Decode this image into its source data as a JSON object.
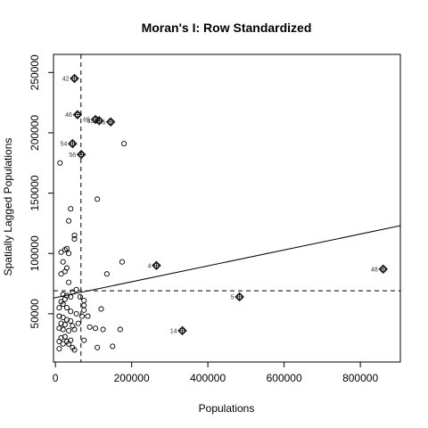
{
  "chart_data": {
    "type": "scatter",
    "title": "Moran's I: Row Standardized",
    "xlabel": "Populations",
    "ylabel": "Spatially Lagged Populations",
    "xlim": [
      -5000,
      905000
    ],
    "ylim": [
      10000,
      265000
    ],
    "x_ticks": [
      0,
      200000,
      400000,
      600000,
      800000
    ],
    "x_tick_labels": [
      "0",
      "200000",
      "400000",
      "600000",
      "800000"
    ],
    "y_ticks": [
      50000,
      100000,
      150000,
      200000,
      250000
    ],
    "y_tick_labels": [
      "50000",
      "100000",
      "150000",
      "200000",
      "250000"
    ],
    "grid": false,
    "reference_lines": {
      "vline_x": 67000,
      "hline_y": 69000,
      "style": "dashed"
    },
    "regression_line": {
      "y_at_x_min": 63000,
      "y_at_x_max": 123000
    },
    "points": [
      [
        12000,
        175000
      ],
      [
        40000,
        137000
      ],
      [
        110000,
        145000
      ],
      [
        35000,
        127000
      ],
      [
        180000,
        191000
      ],
      [
        50000,
        115000
      ],
      [
        50000,
        112000
      ],
      [
        15000,
        101000
      ],
      [
        25000,
        103000
      ],
      [
        30000,
        104000
      ],
      [
        35000,
        100000
      ],
      [
        20000,
        93000
      ],
      [
        30000,
        88000
      ],
      [
        175000,
        93000
      ],
      [
        135000,
        83000
      ],
      [
        15000,
        83000
      ],
      [
        25000,
        85000
      ],
      [
        35000,
        76000
      ],
      [
        20000,
        66000
      ],
      [
        30000,
        65000
      ],
      [
        45000,
        68000
      ],
      [
        55000,
        70000
      ],
      [
        15000,
        60000
      ],
      [
        25000,
        62000
      ],
      [
        40000,
        64000
      ],
      [
        65000,
        64000
      ],
      [
        75000,
        61000
      ],
      [
        75000,
        57000
      ],
      [
        75000,
        53000
      ],
      [
        10000,
        55000
      ],
      [
        20000,
        58000
      ],
      [
        30000,
        55000
      ],
      [
        40000,
        52000
      ],
      [
        55000,
        50000
      ],
      [
        120000,
        54000
      ],
      [
        70000,
        48000
      ],
      [
        85000,
        48000
      ],
      [
        10000,
        48000
      ],
      [
        20000,
        47000
      ],
      [
        30000,
        45000
      ],
      [
        40000,
        44000
      ],
      [
        15000,
        42000
      ],
      [
        25000,
        41000
      ],
      [
        45000,
        40000
      ],
      [
        60000,
        42000
      ],
      [
        10000,
        38000
      ],
      [
        20000,
        37000
      ],
      [
        35000,
        36000
      ],
      [
        50000,
        37000
      ],
      [
        90000,
        39000
      ],
      [
        105000,
        38000
      ],
      [
        125000,
        37000
      ],
      [
        170000,
        37000
      ],
      [
        75000,
        28000
      ],
      [
        25000,
        31000
      ],
      [
        15000,
        30000
      ],
      [
        30000,
        27000
      ],
      [
        40000,
        28000
      ],
      [
        10000,
        27000
      ],
      [
        20000,
        25000
      ],
      [
        35000,
        25000
      ],
      [
        45000,
        22000
      ],
      [
        50000,
        20000
      ],
      [
        110000,
        22000
      ],
      [
        150000,
        23000
      ],
      [
        10000,
        21000
      ]
    ],
    "influential_points": [
      {
        "id": "42",
        "x": 50000,
        "y": 245000
      },
      {
        "id": "46",
        "x": 58000,
        "y": 215000
      },
      {
        "id": "65",
        "x": 105000,
        "y": 211000
      },
      {
        "id": "53",
        "x": 115000,
        "y": 210000
      },
      {
        "id": "6",
        "x": 145000,
        "y": 209000
      },
      {
        "id": "54",
        "x": 45000,
        "y": 191000
      },
      {
        "id": "56",
        "x": 68000,
        "y": 182000
      },
      {
        "id": "4",
        "x": 265000,
        "y": 90000
      },
      {
        "id": "48",
        "x": 860000,
        "y": 87000
      },
      {
        "id": "5",
        "x": 483000,
        "y": 64000
      },
      {
        "id": "14",
        "x": 333000,
        "y": 36000
      }
    ]
  }
}
